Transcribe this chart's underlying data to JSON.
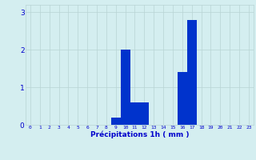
{
  "hours": [
    0,
    1,
    2,
    3,
    4,
    5,
    6,
    7,
    8,
    9,
    10,
    11,
    12,
    13,
    14,
    15,
    16,
    17,
    18,
    19,
    20,
    21,
    22,
    23
  ],
  "values": [
    0,
    0,
    0,
    0,
    0,
    0,
    0,
    0,
    0,
    0.2,
    2.0,
    0.6,
    0.6,
    0,
    0,
    0,
    1.4,
    2.8,
    0,
    0,
    0,
    0,
    0,
    0
  ],
  "bar_color": "#0033cc",
  "bg_color": "#d4eef0",
  "grid_color": "#b8d4d4",
  "xlabel": "Précipitations 1h ( mm )",
  "xlabel_color": "#0000cc",
  "tick_color": "#0000cc",
  "ylim": [
    0,
    3.2
  ],
  "yticks": [
    0,
    1,
    2,
    3
  ],
  "bar_width": 1.0,
  "figsize": [
    3.2,
    2.0
  ],
  "dpi": 100
}
